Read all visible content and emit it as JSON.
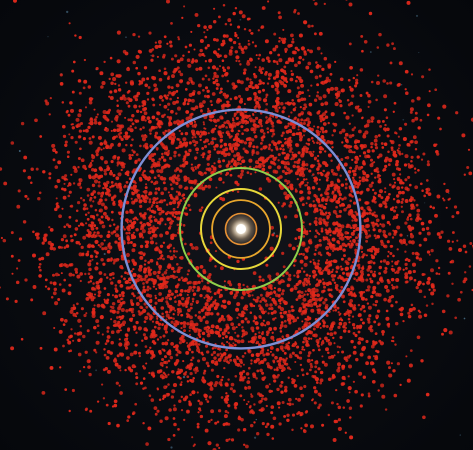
{
  "image": {
    "subject": "solar-system-asteroid-distribution",
    "colors": {
      "background": "#07090d",
      "asteroids": "#e0281b",
      "sun": "#ffffff",
      "sun_glow": "#ffd9a8",
      "mercury_orbit": "#e58b2a",
      "venus_orbit": "#e8a62c",
      "earth_orbit": "#e8d83a",
      "mars_orbit": "#8fcf4a",
      "jupiter_orbit": "#7d8fd6",
      "stars": "#5a8aa8"
    },
    "orbit_ratios": {
      "mercury": 0.387,
      "venus": 0.723,
      "earth": 1.0,
      "mars": 1.524,
      "jupiter": 2.986
    }
  }
}
